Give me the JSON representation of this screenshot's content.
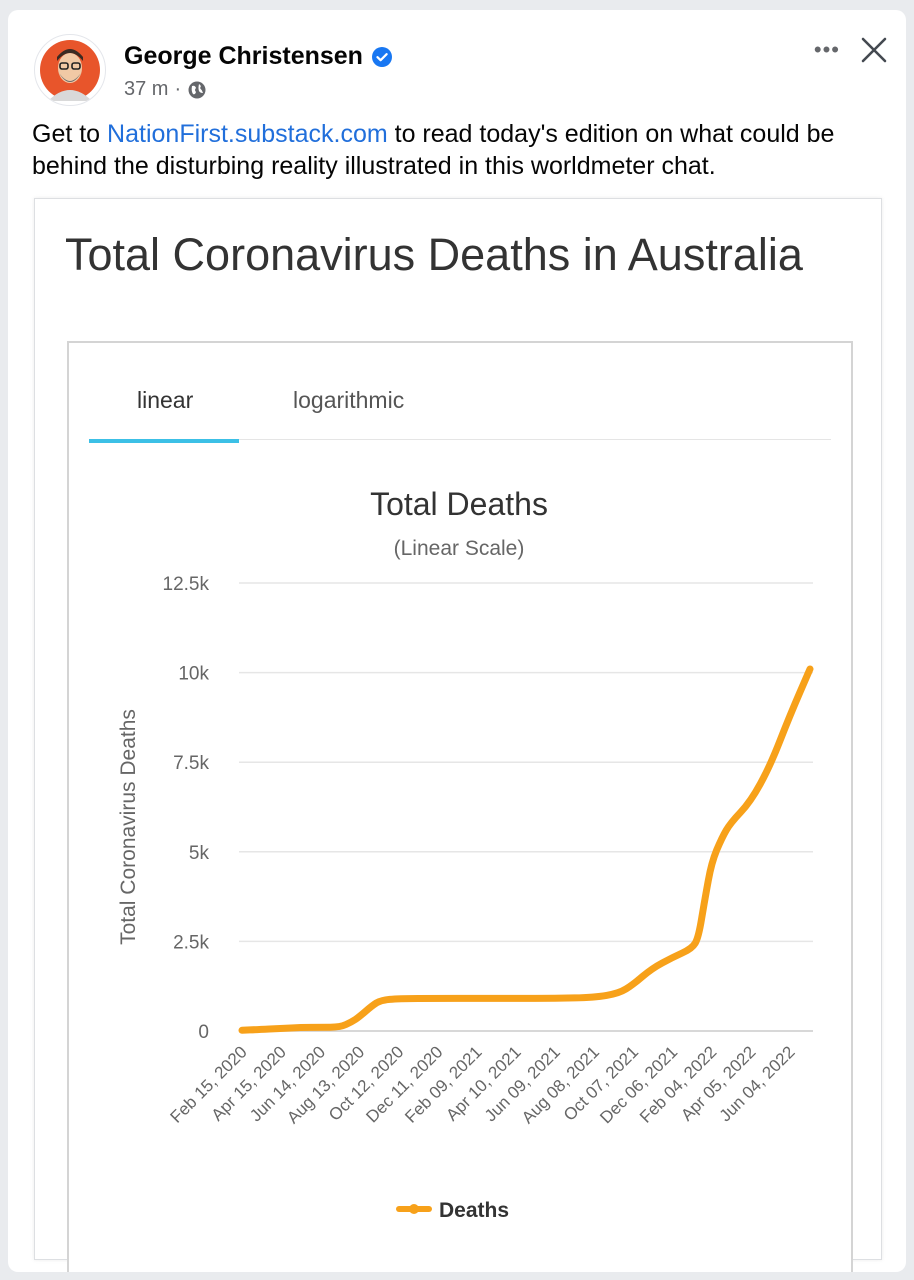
{
  "post": {
    "author": "George Christensen",
    "time": "37 m",
    "separator": "·",
    "more_label": "•••",
    "text_before": "Get to ",
    "link_text": "NationFirst.substack.com",
    "text_after": " to read today's edition on what could be behind the disturbing reality illustrated in this worldmeter chat."
  },
  "image": {
    "title": "Total Coronavirus Deaths in Australia",
    "tabs": [
      {
        "label": "linear",
        "active": true
      },
      {
        "label": "logarithmic",
        "active": false
      }
    ]
  },
  "colors": {
    "line": "#f7a11a",
    "link": "#216fdb",
    "tab_active": "#3cc0e6",
    "verified": "#1877f2"
  },
  "chart_data": {
    "type": "line",
    "title": "Total Deaths",
    "subtitle": "(Linear Scale)",
    "xlabel": "",
    "ylabel": "Total Coronavirus Deaths",
    "ylim": [
      0,
      12500
    ],
    "yticks": [
      0,
      2500,
      5000,
      7500,
      10000,
      12500
    ],
    "ytick_labels": [
      "0",
      "2.5k",
      "5k",
      "7.5k",
      "10k",
      "12.5k"
    ],
    "xtick_labels": [
      "Feb 15, 2020",
      "Apr 15, 2020",
      "Jun 14, 2020",
      "Aug 13, 2020",
      "Oct 12, 2020",
      "Dec 11, 2020",
      "Feb 09, 2021",
      "Apr 10, 2021",
      "Jun 09, 2021",
      "Aug 08, 2021",
      "Oct 07, 2021",
      "Dec 06, 2021",
      "Feb 04, 2022",
      "Apr 05, 2022",
      "Jun 04, 2022"
    ],
    "xlim": [
      "Feb 15, 2020",
      "Jul 05, 2022"
    ],
    "grid": true,
    "legend": "bottom",
    "series": [
      {
        "name": "Deaths",
        "color": "#f7a11a",
        "points": [
          [
            "Feb 15, 2020",
            20
          ],
          [
            "Mar 10, 2020",
            40
          ],
          [
            "Apr 15, 2020",
            70
          ],
          [
            "May 15, 2020",
            100
          ],
          [
            "Jun 14, 2020",
            102
          ],
          [
            "Jul 15, 2020",
            110
          ],
          [
            "Aug 01, 2020",
            250
          ],
          [
            "Aug 13, 2020",
            400
          ],
          [
            "Sep 01, 2020",
            700
          ],
          [
            "Sep 15, 2020",
            860
          ],
          [
            "Oct 12, 2020",
            905
          ],
          [
            "Dec 11, 2020",
            908
          ],
          [
            "Feb 09, 2021",
            909
          ],
          [
            "Apr 10, 2021",
            910
          ],
          [
            "Jun 09, 2021",
            910
          ],
          [
            "Aug 08, 2021",
            935
          ],
          [
            "Sep 15, 2021",
            1050
          ],
          [
            "Oct 07, 2021",
            1300
          ],
          [
            "Nov 05, 2021",
            1750
          ],
          [
            "Dec 06, 2021",
            2050
          ],
          [
            "Jan 05, 2022",
            2300
          ],
          [
            "Jan 15, 2022",
            2600
          ],
          [
            "Jan 25, 2022",
            3700
          ],
          [
            "Feb 04, 2022",
            4700
          ],
          [
            "Feb 20, 2022",
            5400
          ],
          [
            "Mar 05, 2022",
            5800
          ],
          [
            "Apr 05, 2022",
            6400
          ],
          [
            "May 05, 2022",
            7400
          ],
          [
            "Jun 04, 2022",
            8800
          ],
          [
            "Jul 05, 2022",
            10100
          ]
        ]
      }
    ]
  }
}
